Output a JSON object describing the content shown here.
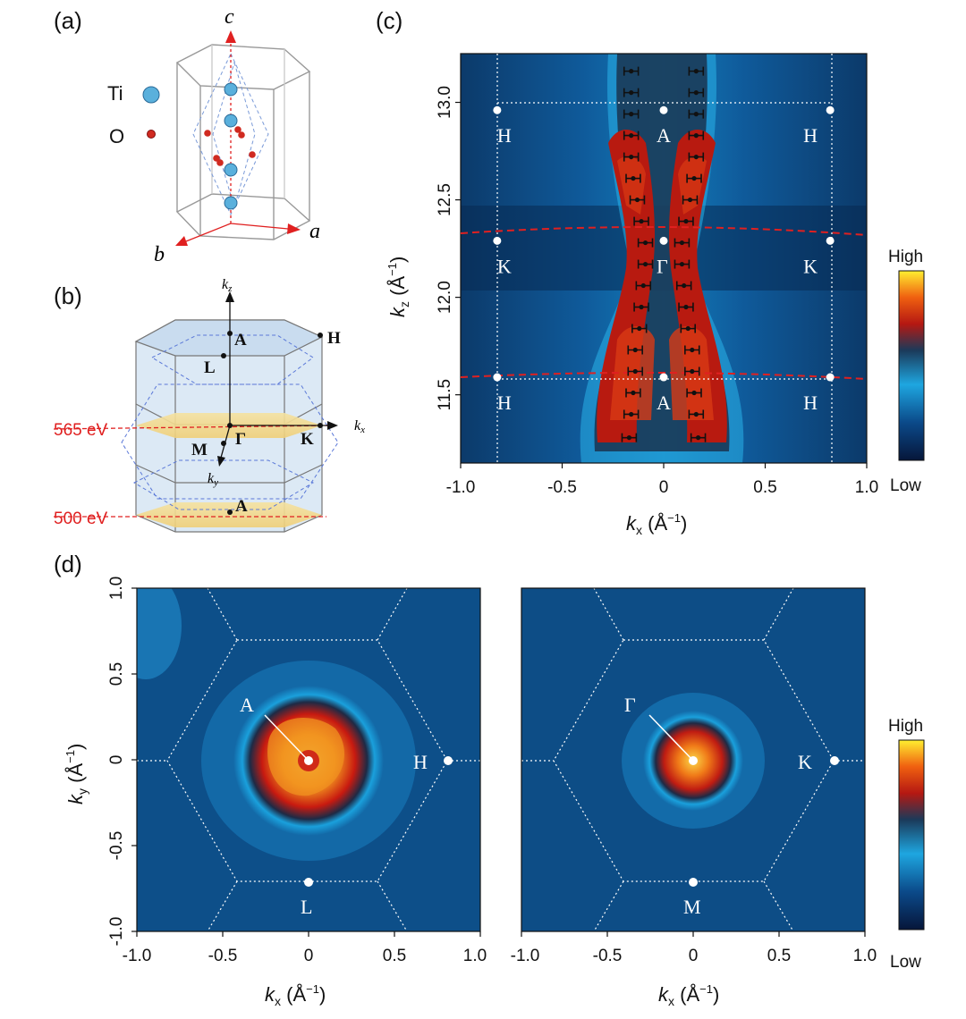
{
  "panels": {
    "a": {
      "label": "(a)",
      "atom1": "Ti",
      "atom2": "O",
      "axis_c": "c",
      "axis_a": "a",
      "axis_b": "b"
    },
    "b": {
      "label": "(b)",
      "kz": "k",
      "kz_sub": "z",
      "kx": "k",
      "kx_sub": "x",
      "ky": "k",
      "ky_sub": "y",
      "points": [
        "A",
        "H",
        "L",
        "Γ",
        "K",
        "M",
        "A"
      ],
      "energy_top": "565 eV",
      "energy_bottom": "500 eV"
    },
    "c": {
      "label": "(c)",
      "xlabel_k": "k",
      "xlabel_sub": "x",
      "xlabel_unit": " (Å",
      "ylabel_k": "k",
      "ylabel_sub": "z",
      "ylabel_unit": " (Å",
      "xticks": [
        "-1.0",
        "-0.5",
        "0",
        "0.5",
        "1.0"
      ],
      "yticks": [
        "11.5",
        "12.0",
        "12.5",
        "13.0"
      ],
      "points": {
        "H1": "H",
        "A1": "A",
        "H2": "H",
        "K1": "K",
        "G": "Γ",
        "K2": "K",
        "H3": "H",
        "A2": "A",
        "H4": "H"
      },
      "colorbar_high": "High",
      "colorbar_low": "Low"
    },
    "d": {
      "label": "(d)",
      "xlabel_k": "k",
      "xlabel_sub": "x",
      "xlabel_unit": " (Å",
      "ylabel_k": "k",
      "ylabel_sub": "y",
      "ylabel_unit": " (Å",
      "xticks_left": [
        "-1.0",
        "-0.5",
        "0",
        "0.5",
        "1.0"
      ],
      "xticks_right": [
        "-1.0",
        "-0.5",
        "0",
        "0.5",
        "1.0"
      ],
      "yticks": [
        "-1.0",
        "-0.5",
        "0",
        "0.5",
        "1.0"
      ],
      "left_points": {
        "center": "A",
        "right": "H",
        "bottom": "L"
      },
      "right_points": {
        "center": "Γ",
        "right": "K",
        "bottom": "M"
      },
      "colorbar_high": "High",
      "colorbar_low": "Low"
    },
    "unit_sup": "−1",
    "unit_close": ")"
  },
  "chart_data": [
    {
      "type": "heatmap",
      "panel": "c",
      "xlabel": "kx (Å−1)",
      "ylabel": "kz (Å−1)",
      "xlim": [
        -1.0,
        1.0
      ],
      "ylim": [
        11.15,
        13.25
      ],
      "bz_points": [
        {
          "label": "H",
          "x": -0.82,
          "y": 12.96
        },
        {
          "label": "A",
          "x": 0,
          "y": 12.96
        },
        {
          "label": "H",
          "x": 0.82,
          "y": 12.96
        },
        {
          "label": "K",
          "x": -0.82,
          "y": 12.29
        },
        {
          "label": "Γ",
          "x": 0,
          "y": 12.29
        },
        {
          "label": "K",
          "x": 0.82,
          "y": 12.29
        },
        {
          "label": "H",
          "x": -0.82,
          "y": 11.59
        },
        {
          "label": "A",
          "x": 0,
          "y": 11.59
        },
        {
          "label": "H",
          "x": 0.82,
          "y": 11.59
        }
      ],
      "peak_kz": [
        11.28,
        11.4,
        11.51,
        11.62,
        11.73,
        11.84,
        11.95,
        12.06,
        12.17,
        12.28,
        12.39,
        12.5,
        12.61,
        12.72,
        12.83,
        12.94,
        13.05,
        13.16
      ],
      "peak_kx": [
        0.17,
        0.16,
        0.15,
        0.14,
        0.14,
        0.12,
        0.11,
        0.1,
        0.09,
        0.09,
        0.11,
        0.13,
        0.15,
        0.16,
        0.16,
        0.16,
        0.16,
        0.16
      ],
      "peak_err": 0.035
    },
    {
      "type": "heatmap",
      "panel": "d-left",
      "xlabel": "kx (Å−1)",
      "ylabel": "ky (Å−1)",
      "xlim": [
        -1.0,
        1.0
      ],
      "ylim": [
        -1.0,
        1.0
      ],
      "bz_points": [
        {
          "label": "A",
          "x": 0,
          "y": 0
        },
        {
          "label": "H",
          "x": 0.82,
          "y": 0
        },
        {
          "label": "L",
          "x": 0,
          "y": -0.71
        }
      ]
    },
    {
      "type": "heatmap",
      "panel": "d-right",
      "xlabel": "kx (Å−1)",
      "xlim": [
        -1.0,
        1.0
      ],
      "ylim": [
        -1.0,
        1.0
      ],
      "bz_points": [
        {
          "label": "Γ",
          "x": 0,
          "y": 0
        },
        {
          "label": "K",
          "x": 0.82,
          "y": 0
        },
        {
          "label": "M",
          "x": 0,
          "y": -0.71
        }
      ]
    }
  ],
  "colors": {
    "low": "#0a1a3a",
    "mid": "#1ea0dc",
    "red": "#c81a10",
    "high": "#ffee30",
    "dashed_red": "#e02020"
  }
}
